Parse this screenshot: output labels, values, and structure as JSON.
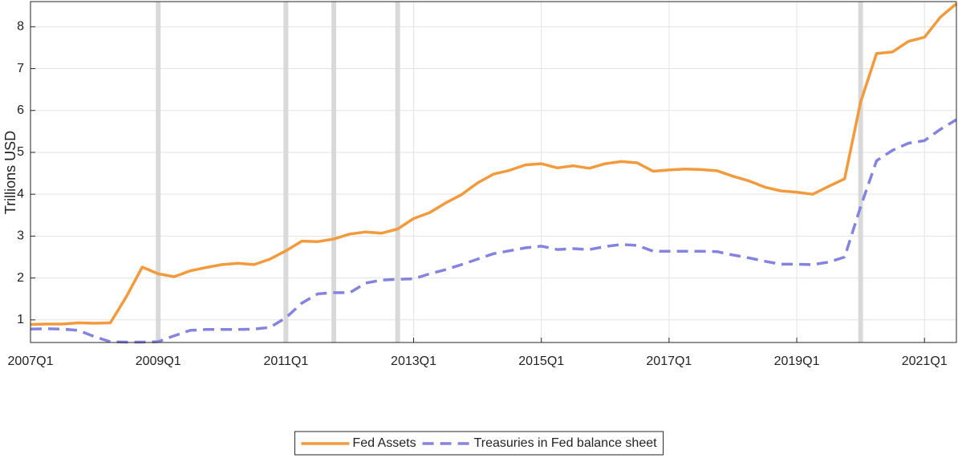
{
  "chart_data": {
    "type": "line",
    "ylabel": "Trillions USD",
    "x": [
      "2007Q1",
      "2007Q2",
      "2007Q3",
      "2007Q4",
      "2008Q1",
      "2008Q2",
      "2008Q3",
      "2008Q4",
      "2009Q1",
      "2009Q2",
      "2009Q3",
      "2009Q4",
      "2010Q1",
      "2010Q2",
      "2010Q3",
      "2010Q4",
      "2011Q1",
      "2011Q2",
      "2011Q3",
      "2011Q4",
      "2012Q1",
      "2012Q2",
      "2012Q3",
      "2012Q4",
      "2013Q1",
      "2013Q2",
      "2013Q3",
      "2013Q4",
      "2014Q1",
      "2014Q2",
      "2014Q3",
      "2014Q4",
      "2015Q1",
      "2015Q2",
      "2015Q3",
      "2015Q4",
      "2016Q1",
      "2016Q2",
      "2016Q3",
      "2016Q4",
      "2017Q1",
      "2017Q2",
      "2017Q3",
      "2017Q4",
      "2018Q1",
      "2018Q2",
      "2018Q3",
      "2018Q4",
      "2019Q1",
      "2019Q2",
      "2019Q3",
      "2019Q4",
      "2020Q1",
      "2020Q2",
      "2020Q3",
      "2020Q4",
      "2021Q1",
      "2021Q2",
      "2021Q3"
    ],
    "series": [
      {
        "name": "Fed Assets",
        "color": "#f29a3c",
        "dash": false,
        "values": [
          0.89,
          0.9,
          0.9,
          0.93,
          0.92,
          0.93,
          1.55,
          2.26,
          2.1,
          2.03,
          2.17,
          2.25,
          2.32,
          2.35,
          2.32,
          2.45,
          2.65,
          2.88,
          2.87,
          2.93,
          3.05,
          3.1,
          3.07,
          3.17,
          3.42,
          3.56,
          3.79,
          3.99,
          4.27,
          4.48,
          4.57,
          4.7,
          4.73,
          4.63,
          4.68,
          4.62,
          4.73,
          4.78,
          4.75,
          4.55,
          4.58,
          4.6,
          4.59,
          4.56,
          4.43,
          4.32,
          4.17,
          4.08,
          4.05,
          4.0,
          4.19,
          4.37,
          6.2,
          7.36,
          7.4,
          7.65,
          7.75,
          8.23,
          8.55
        ]
      },
      {
        "name": "Treasuries in Fed balance sheet",
        "color": "#8484e0",
        "dash": true,
        "values": [
          0.78,
          0.79,
          0.78,
          0.75,
          0.6,
          0.48,
          0.47,
          0.47,
          0.48,
          0.62,
          0.75,
          0.77,
          0.77,
          0.77,
          0.78,
          0.82,
          1.05,
          1.4,
          1.62,
          1.65,
          1.65,
          1.88,
          1.95,
          1.97,
          1.98,
          2.1,
          2.2,
          2.32,
          2.45,
          2.58,
          2.65,
          2.72,
          2.76,
          2.68,
          2.7,
          2.68,
          2.75,
          2.8,
          2.78,
          2.64,
          2.64,
          2.64,
          2.64,
          2.63,
          2.55,
          2.48,
          2.4,
          2.33,
          2.33,
          2.32,
          2.38,
          2.5,
          3.7,
          4.8,
          5.05,
          5.22,
          5.28,
          5.55,
          5.78
        ]
      }
    ],
    "event_lines": [
      "2009Q1",
      "2011Q1",
      "2011Q4",
      "2012Q4",
      "2020Q1"
    ],
    "event_color": "#d9d9d9",
    "xlim": [
      "2007Q1",
      "2021Q3"
    ],
    "xticks": [
      "2007Q1",
      "2009Q1",
      "2011Q1",
      "2013Q1",
      "2015Q1",
      "2017Q1",
      "2019Q1",
      "2021Q1"
    ],
    "ylim": [
      0.46,
      8.6
    ],
    "yticks": [
      1,
      2,
      3,
      4,
      5,
      6,
      7,
      8
    ],
    "grid": true,
    "legend": "bottom"
  }
}
